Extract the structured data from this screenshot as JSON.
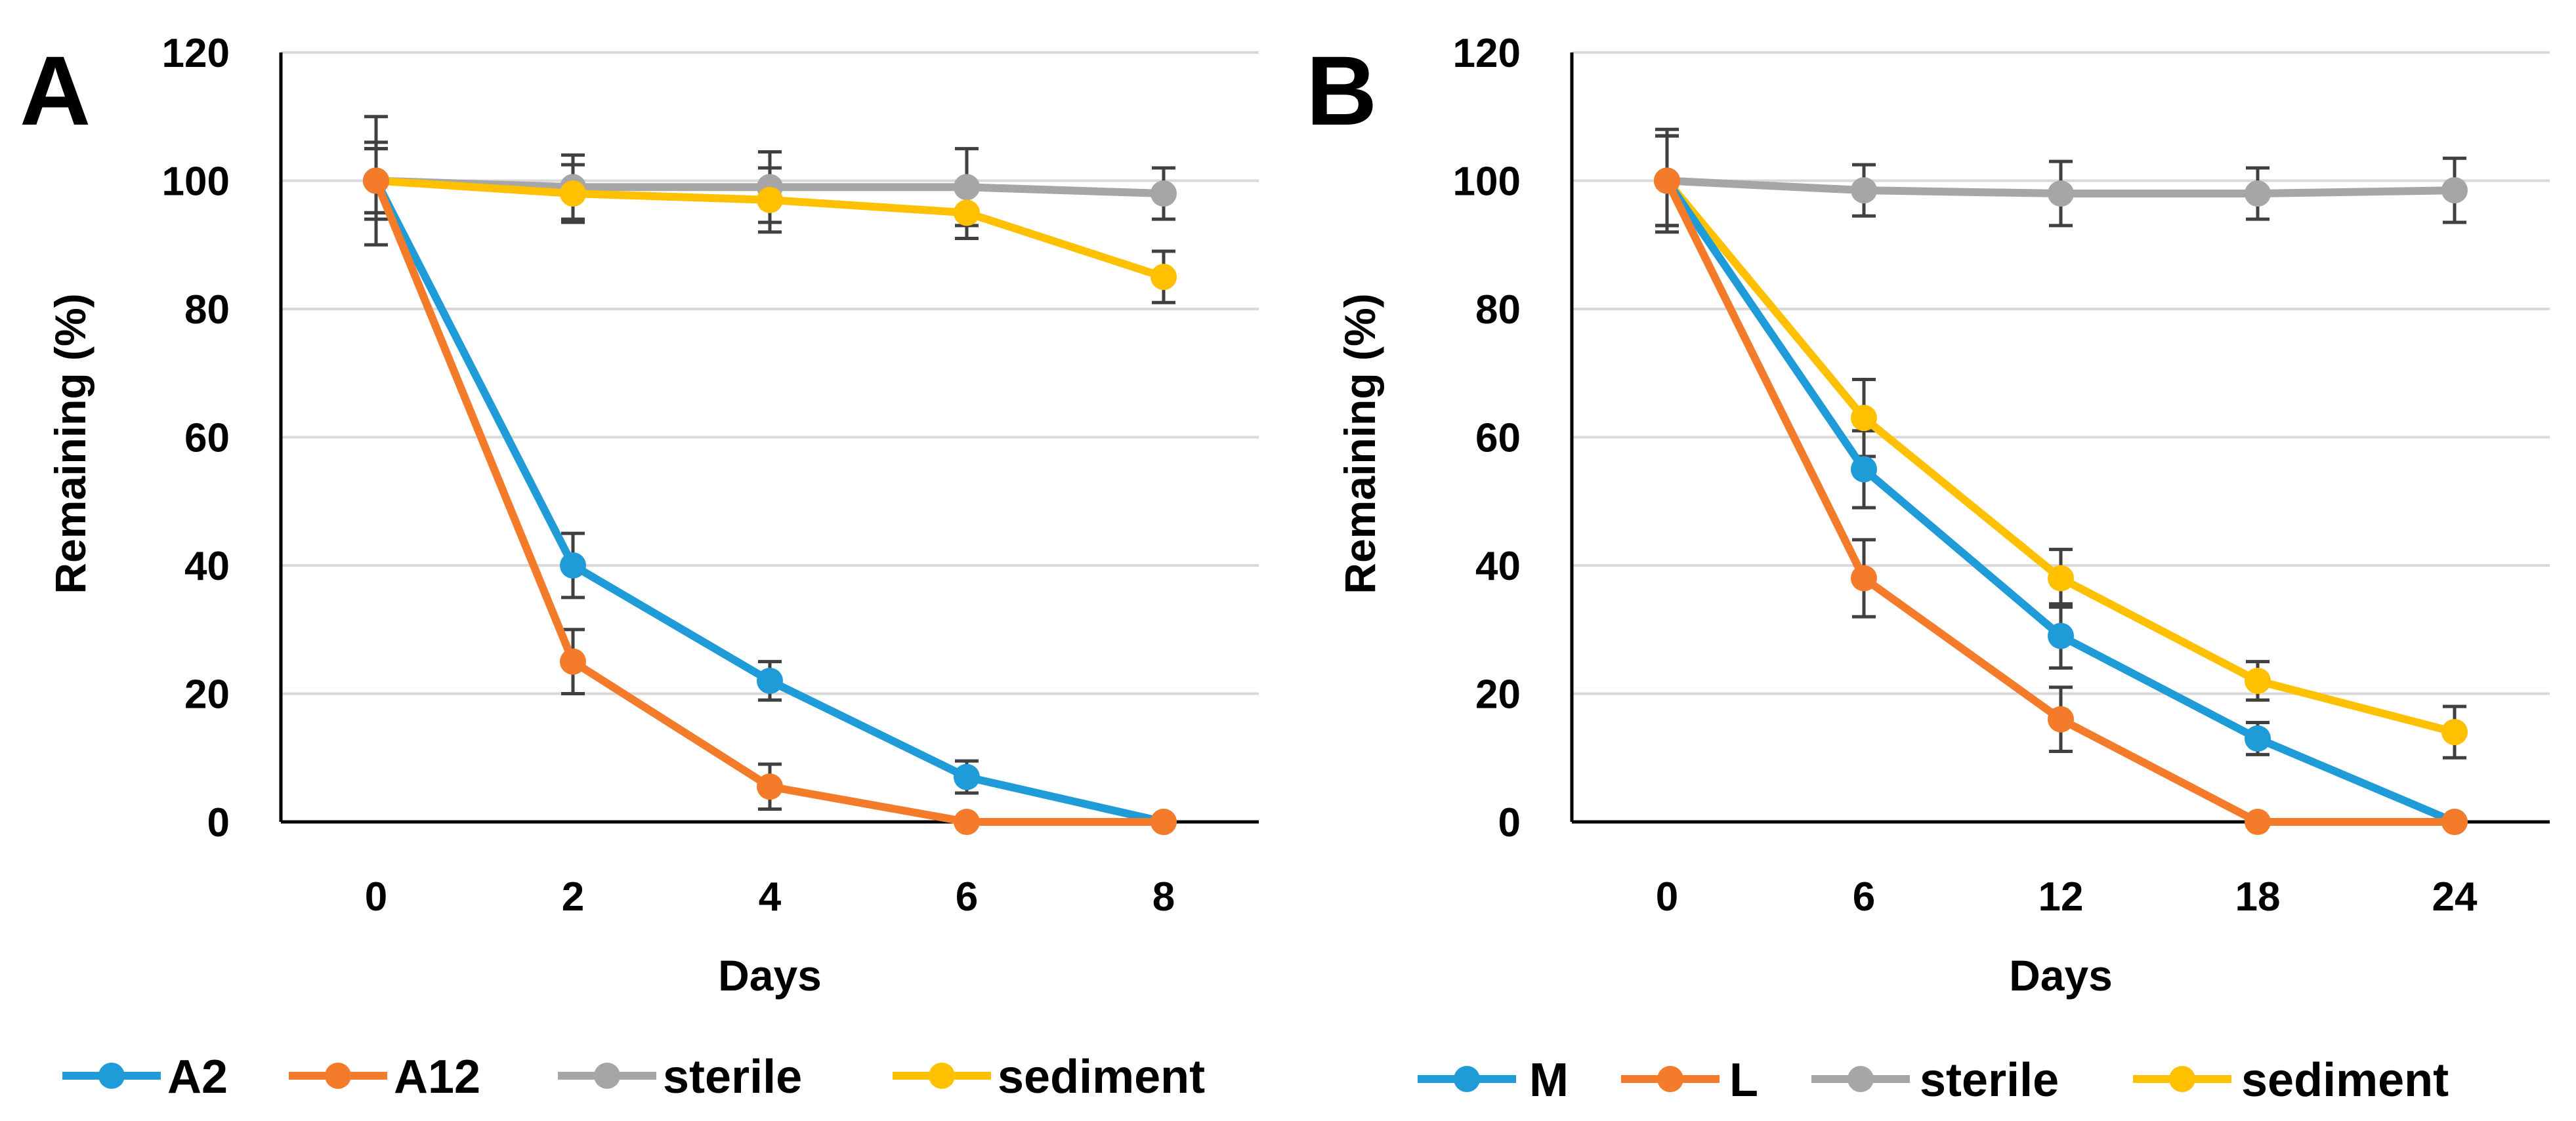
{
  "chart_data": [
    {
      "type": "line",
      "panel_label": "A",
      "x": [
        0,
        2,
        4,
        6,
        8
      ],
      "x_tick_labels": [
        "0",
        "2",
        "4",
        "6",
        "8"
      ],
      "y_tick_labels": [
        "0",
        "20",
        "40",
        "60",
        "80",
        "100",
        "120"
      ],
      "ylim": [
        0,
        120
      ],
      "grid": "horizontal",
      "xlabel": "Days",
      "ylabel": "Remaining (%)",
      "legend_position": "bottom",
      "series": [
        {
          "name": "A2",
          "color": "#1F9BD7",
          "values": [
            100,
            40,
            22,
            7,
            0
          ],
          "errors": [
            5,
            5,
            3,
            2.5,
            0
          ]
        },
        {
          "name": "A12",
          "color": "#F47B2A",
          "values": [
            100,
            25,
            5.5,
            0,
            0
          ],
          "errors": [
            5,
            5,
            3.5,
            0,
            0
          ]
        },
        {
          "name": "sterile",
          "color": "#A6A6A6",
          "values": [
            100,
            99,
            99,
            99,
            98
          ],
          "errors": [
            10,
            5,
            5.5,
            6,
            4
          ]
        },
        {
          "name": "sediment",
          "color": "#FFC000",
          "values": [
            100,
            98,
            97,
            95,
            85
          ],
          "errors": [
            6,
            4.5,
            5,
            4,
            4
          ]
        }
      ]
    },
    {
      "type": "line",
      "panel_label": "B",
      "x": [
        0,
        6,
        12,
        18,
        24
      ],
      "x_tick_labels": [
        "0",
        "6",
        "12",
        "18",
        "24"
      ],
      "y_tick_labels": [
        "0",
        "20",
        "40",
        "60",
        "80",
        "100",
        "120"
      ],
      "ylim": [
        0,
        120
      ],
      "grid": "horizontal",
      "xlabel": "Days",
      "ylabel": "Remaining (%)",
      "legend_position": "bottom",
      "series": [
        {
          "name": "M",
          "color": "#1F9BD7",
          "values": [
            100,
            55,
            29,
            13,
            0
          ],
          "errors": [
            7,
            6,
            5,
            2.5,
            0
          ]
        },
        {
          "name": "L",
          "color": "#F47B2A",
          "values": [
            100,
            38,
            16,
            0,
            0
          ],
          "errors": [
            7,
            6,
            5,
            0,
            0
          ]
        },
        {
          "name": "sterile",
          "color": "#A6A6A6",
          "values": [
            100,
            98.5,
            98,
            98,
            98.5
          ],
          "errors": [
            8,
            4,
            5,
            4,
            5
          ]
        },
        {
          "name": "sediment",
          "color": "#FFC000",
          "values": [
            100,
            63,
            38,
            22,
            14
          ],
          "errors": [
            7,
            6,
            4.5,
            3,
            4
          ]
        }
      ]
    }
  ]
}
